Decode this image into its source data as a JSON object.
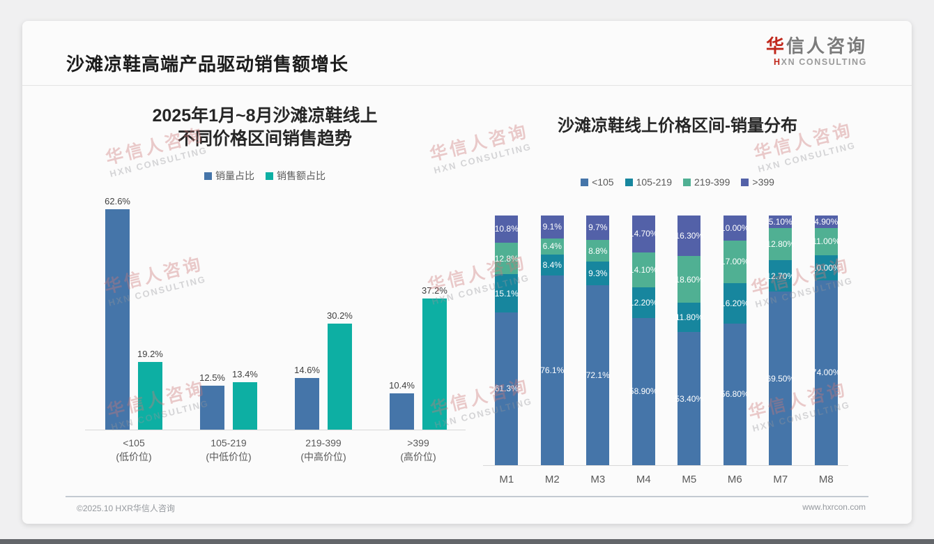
{
  "header": {
    "title": "沙滩凉鞋高端产品驱动销售额增长",
    "logo": {
      "zh_red": "华",
      "zh_gray": "信人咨询",
      "en_red": "H",
      "en_gray": "XN CONSULTING"
    }
  },
  "watermark": {
    "line1": "华信人咨询",
    "line2": "HXN CONSULTING"
  },
  "footer": {
    "left": "©2025.10 HXR华信人咨询",
    "right": "www.hxrcon.com"
  },
  "colors": {
    "blue": "#4575A9",
    "teal_bright": "#0DAFA3",
    "stack_blue": "#4575A9",
    "stack_teal": "#17869E",
    "stack_green": "#50B093",
    "stack_indigo": "#5361A8",
    "accent_red": "#C0281C"
  },
  "chart_data": [
    {
      "type": "bar",
      "title_lines": [
        "2025年1月~8月沙滩凉鞋线上",
        "不同价格区间销售趋势"
      ],
      "categories": [
        "<105",
        "105-219",
        "219-399",
        ">399"
      ],
      "category_sublabels": [
        "(低价位)",
        "(中低价位)",
        "(中高价位)",
        "(高价位)"
      ],
      "series": [
        {
          "name": "销量占比",
          "color": "#4575A9",
          "values": [
            62.6,
            12.5,
            14.6,
            10.4
          ],
          "labels": [
            "62.6%",
            "12.5%",
            "14.6%",
            "10.4%"
          ]
        },
        {
          "name": "销售额占比",
          "color": "#0DAFA3",
          "values": [
            19.2,
            13.4,
            30.2,
            37.2
          ],
          "labels": [
            "19.2%",
            "13.4%",
            "30.2%",
            "37.2%"
          ]
        }
      ],
      "ylabel": "",
      "xlabel": "",
      "ylim": [
        0,
        70
      ],
      "grid": false,
      "legend_position": "top",
      "data_labels": "above-bars"
    },
    {
      "type": "bar",
      "subtype": "stacked-100",
      "title": "沙滩凉鞋线上价格区间-销量分布",
      "categories": [
        "M1",
        "M2",
        "M3",
        "M4",
        "M5",
        "M6",
        "M7",
        "M8"
      ],
      "series": [
        {
          "name": "<105",
          "color": "#4575A9",
          "values": [
            61.3,
            76.1,
            72.1,
            58.9,
            53.4,
            56.8,
            69.5,
            74.0
          ],
          "labels": [
            "61.3%",
            "76.1%",
            "72.1%",
            "58.90%",
            "53.40%",
            "56.80%",
            "69.50%",
            "74.00%"
          ]
        },
        {
          "name": "105-219",
          "color": "#17869E",
          "values": [
            15.1,
            8.4,
            9.3,
            12.2,
            11.8,
            16.2,
            12.7,
            10.0
          ],
          "labels": [
            "15.1%",
            "8.4%",
            "9.3%",
            "12.20%",
            "11.80%",
            "16.20%",
            "12.70%",
            "10.00%"
          ]
        },
        {
          "name": "219-399",
          "color": "#50B093",
          "values": [
            12.8,
            6.4,
            8.8,
            14.1,
            18.6,
            17.0,
            12.8,
            11.0
          ],
          "labels": [
            "12.8%",
            "6.4%",
            "8.8%",
            "14.10%",
            "18.60%",
            "17.00%",
            "12.80%",
            "11.00%"
          ]
        },
        {
          "name": ">399",
          "color": "#5361A8",
          "values": [
            10.8,
            9.1,
            9.7,
            14.7,
            16.3,
            10.0,
            5.1,
            4.9
          ],
          "labels": [
            "10.8%",
            "9.1%",
            "9.7%",
            "14.70%",
            "16.30%",
            "10.00%",
            "5.10%",
            "4.90%"
          ]
        }
      ],
      "ylim": [
        0,
        100
      ],
      "grid": false,
      "legend_position": "top",
      "data_labels": "inside-white"
    }
  ]
}
